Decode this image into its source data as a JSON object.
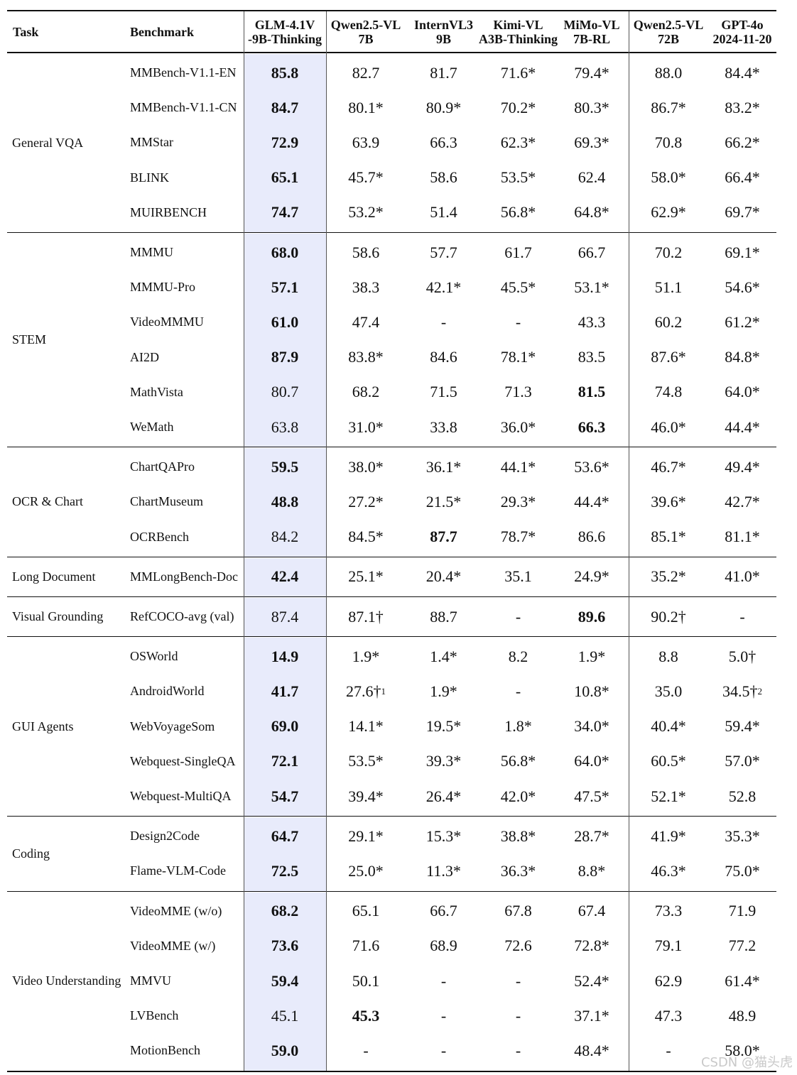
{
  "header": {
    "task": "Task",
    "benchmark": "Benchmark",
    "models": [
      [
        "GLM-4.1V",
        "-9B-Thinking"
      ],
      [
        "Qwen2.5-VL",
        "7B"
      ],
      [
        "InternVL3",
        "9B"
      ],
      [
        "Kimi-VL",
        "A3B-Thinking"
      ],
      [
        "MiMo-VL",
        "7B-RL"
      ],
      [
        "Qwen2.5-VL",
        "72B"
      ],
      [
        "GPT-4o",
        "2024-11-20"
      ]
    ]
  },
  "groups": [
    {
      "task": "General VQA",
      "rows": [
        {
          "benchmark": "MMBench-V1.1-EN",
          "values": [
            "85.8",
            "82.7",
            "81.7",
            "71.6*",
            "79.4*",
            "88.0",
            "84.4*"
          ],
          "bold": [
            0
          ]
        },
        {
          "benchmark": "MMBench-V1.1-CN",
          "values": [
            "84.7",
            "80.1*",
            "80.9*",
            "70.2*",
            "80.3*",
            "86.7*",
            "83.2*"
          ],
          "bold": [
            0
          ]
        },
        {
          "benchmark": "MMStar",
          "values": [
            "72.9",
            "63.9",
            "66.3",
            "62.3*",
            "69.3*",
            "70.8",
            "66.2*"
          ],
          "bold": [
            0
          ]
        },
        {
          "benchmark": "BLINK",
          "values": [
            "65.1",
            "45.7*",
            "58.6",
            "53.5*",
            "62.4",
            "58.0*",
            "66.4*"
          ],
          "bold": [
            0
          ]
        },
        {
          "benchmark": "MUIRBENCH",
          "values": [
            "74.7",
            "53.2*",
            "51.4",
            "56.8*",
            "64.8*",
            "62.9*",
            "69.7*"
          ],
          "bold": [
            0
          ]
        }
      ]
    },
    {
      "task": "STEM",
      "rows": [
        {
          "benchmark": "MMMU",
          "values": [
            "68.0",
            "58.6",
            "57.7",
            "61.7",
            "66.7",
            "70.2",
            "69.1*"
          ],
          "bold": [
            0
          ]
        },
        {
          "benchmark": "MMMU-Pro",
          "values": [
            "57.1",
            "38.3",
            "42.1*",
            "45.5*",
            "53.1*",
            "51.1",
            "54.6*"
          ],
          "bold": [
            0
          ]
        },
        {
          "benchmark": "VideoMMMU",
          "values": [
            "61.0",
            "47.4",
            "-",
            "-",
            "43.3",
            "60.2",
            "61.2*"
          ],
          "bold": [
            0
          ]
        },
        {
          "benchmark": "AI2D",
          "values": [
            "87.9",
            "83.8*",
            "84.6",
            "78.1*",
            "83.5",
            "87.6*",
            "84.8*"
          ],
          "bold": [
            0
          ]
        },
        {
          "benchmark": "MathVista",
          "values": [
            "80.7",
            "68.2",
            "71.5",
            "71.3",
            "81.5",
            "74.8",
            "64.0*"
          ],
          "bold": [
            4
          ]
        },
        {
          "benchmark": "WeMath",
          "values": [
            "63.8",
            "31.0*",
            "33.8",
            "36.0*",
            "66.3",
            "46.0*",
            "44.4*"
          ],
          "bold": [
            4
          ]
        }
      ]
    },
    {
      "task": "OCR & Chart",
      "rows": [
        {
          "benchmark": "ChartQAPro",
          "values": [
            "59.5",
            "38.0*",
            "36.1*",
            "44.1*",
            "53.6*",
            "46.7*",
            "49.4*"
          ],
          "bold": [
            0
          ]
        },
        {
          "benchmark": "ChartMuseum",
          "values": [
            "48.8",
            "27.2*",
            "21.5*",
            "29.3*",
            "44.4*",
            "39.6*",
            "42.7*"
          ],
          "bold": [
            0
          ]
        },
        {
          "benchmark": "OCRBench",
          "values": [
            "84.2",
            "84.5*",
            "87.7",
            "78.7*",
            "86.6",
            "85.1*",
            "81.1*"
          ],
          "bold": [
            2
          ]
        }
      ]
    },
    {
      "task": "Long Document",
      "rows": [
        {
          "benchmark": "MMLongBench-Doc",
          "values": [
            "42.4",
            "25.1*",
            "20.4*",
            "35.1",
            "24.9*",
            "35.2*",
            "41.0*"
          ],
          "bold": [
            0
          ]
        }
      ]
    },
    {
      "task": "Visual Grounding",
      "rows": [
        {
          "benchmark": "RefCOCO-avg (val)",
          "values": [
            "87.4",
            "87.1†",
            "88.7",
            "-",
            "89.6",
            "90.2†",
            "-"
          ],
          "bold": [
            4
          ]
        }
      ]
    },
    {
      "task": "GUI Agents",
      "rows": [
        {
          "benchmark": "OSWorld",
          "values": [
            "14.9",
            "1.9*",
            "1.4*",
            "8.2",
            "1.9*",
            "8.8",
            "5.0†"
          ],
          "bold": [
            0
          ]
        },
        {
          "benchmark": "AndroidWorld",
          "values": [
            "41.7",
            "27.6†",
            "1.9*",
            "-",
            "10.8*",
            "35.0",
            "34.5†"
          ],
          "sups": {
            "1": "1",
            "6": "2"
          },
          "bold": [
            0
          ]
        },
        {
          "benchmark": "WebVoyageSom",
          "values": [
            "69.0",
            "14.1*",
            "19.5*",
            "1.8*",
            "34.0*",
            "40.4*",
            "59.4*"
          ],
          "bold": [
            0
          ]
        },
        {
          "benchmark": "Webquest-SingleQA",
          "values": [
            "72.1",
            "53.5*",
            "39.3*",
            "56.8*",
            "64.0*",
            "60.5*",
            "57.0*"
          ],
          "bold": [
            0
          ]
        },
        {
          "benchmark": "Webquest-MultiQA",
          "values": [
            "54.7",
            "39.4*",
            "26.4*",
            "42.0*",
            "47.5*",
            "52.1*",
            "52.8"
          ],
          "bold": [
            0
          ]
        }
      ]
    },
    {
      "task": "Coding",
      "rows": [
        {
          "benchmark": "Design2Code",
          "values": [
            "64.7",
            "29.1*",
            "15.3*",
            "38.8*",
            "28.7*",
            "41.9*",
            "35.3*"
          ],
          "bold": [
            0
          ]
        },
        {
          "benchmark": "Flame-VLM-Code",
          "values": [
            "72.5",
            "25.0*",
            "11.3*",
            "36.3*",
            "8.8*",
            "46.3*",
            "75.0*"
          ],
          "bold": [
            0
          ]
        }
      ]
    },
    {
      "task": "Video Understanding",
      "rows": [
        {
          "benchmark": "VideoMME (w/o)",
          "values": [
            "68.2",
            "65.1",
            "66.7",
            "67.8",
            "67.4",
            "73.3",
            "71.9"
          ],
          "bold": [
            0
          ]
        },
        {
          "benchmark": "VideoMME (w/)",
          "values": [
            "73.6",
            "71.6",
            "68.9",
            "72.6",
            "72.8*",
            "79.1",
            "77.2"
          ],
          "bold": [
            0
          ]
        },
        {
          "benchmark": "MMVU",
          "values": [
            "59.4",
            "50.1",
            "-",
            "-",
            "52.4*",
            "62.9",
            "61.4*"
          ],
          "bold": [
            0
          ]
        },
        {
          "benchmark": "LVBench",
          "values": [
            "45.1",
            "45.3",
            "-",
            "-",
            "37.1*",
            "47.3",
            "48.9"
          ],
          "bold": [
            1
          ]
        },
        {
          "benchmark": "MotionBench",
          "values": [
            "59.0",
            "-",
            "-",
            "-",
            "48.4*",
            "-",
            "58.0*"
          ],
          "bold": [
            0
          ]
        }
      ]
    }
  ],
  "watermark": "CSDN @猫头虎",
  "colors": {
    "highlight_column": "#e8ebfb",
    "rule": "#111111"
  }
}
